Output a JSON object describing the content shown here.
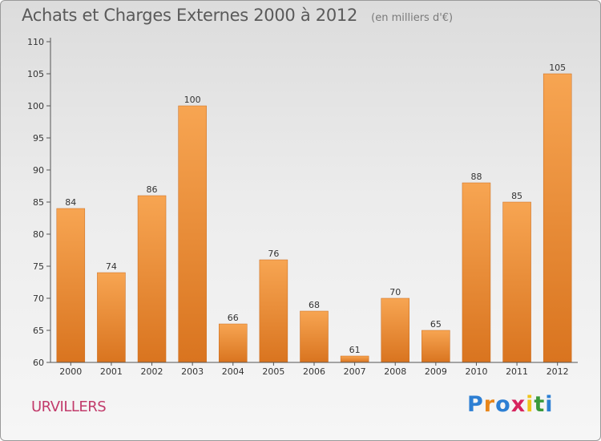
{
  "header": {
    "title": "Achats et Charges Externes 2000 à 2012",
    "unit": "(en milliers d'€)"
  },
  "footer": {
    "place": "URVILLERS",
    "logo": [
      "P",
      "r",
      "o",
      "x",
      "i",
      "t",
      "i"
    ],
    "logo_colors": [
      "#2d7fd3",
      "#e8861a",
      "#2d7fd3",
      "#d6245e",
      "#f0c419",
      "#3a9a3a",
      "#2d7fd3"
    ]
  },
  "colors": {
    "bar_light": "#f7a552",
    "bar_dark": "#d9741f",
    "axis": "#555555",
    "grid": "#bbbbbb"
  },
  "chart_data": {
    "type": "bar",
    "title": "Achats et Charges Externes 2000 à 2012",
    "subtitle": "(en milliers d'€)",
    "xlabel": "",
    "ylabel": "",
    "categories": [
      "2000",
      "2001",
      "2002",
      "2003",
      "2004",
      "2005",
      "2006",
      "2007",
      "2008",
      "2009",
      "2010",
      "2011",
      "2012"
    ],
    "values": [
      84,
      74,
      86,
      100,
      66,
      76,
      68,
      61,
      70,
      65,
      88,
      85,
      105
    ],
    "ylim": [
      60,
      110
    ],
    "yticks": [
      60,
      65,
      70,
      75,
      80,
      85,
      90,
      95,
      100,
      105,
      110
    ],
    "grid": false,
    "data_labels": true
  }
}
